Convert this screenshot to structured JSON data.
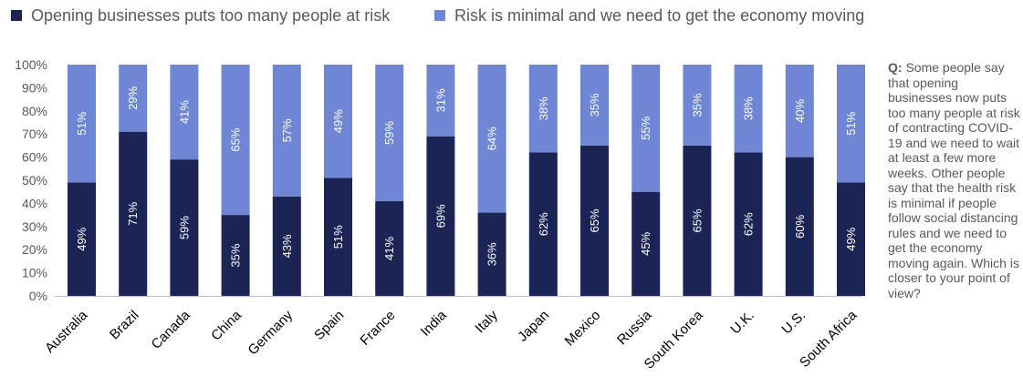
{
  "colors": {
    "series1": "#1b2455",
    "series2": "#6e86d4",
    "axis": "#bfbfbf"
  },
  "question": {
    "prefix": "Q:",
    "text": "Some people say that opening businesses now puts too many people at risk of contracting COVID-19 and we need to wait at least a few more weeks. Other people say that the health risk is minimal if people follow social distancing rules and we need to get the economy moving again. Which is closer to your point of view?"
  },
  "chart_data": {
    "type": "bar",
    "stacked": true,
    "legend_position": "top",
    "ylim": [
      0,
      100
    ],
    "y_ticks": [
      "0%",
      "10%",
      "20%",
      "30%",
      "40%",
      "50%",
      "60%",
      "70%",
      "80%",
      "90%",
      "100%"
    ],
    "categories": [
      "Australia",
      "Brazil",
      "Canada",
      "China",
      "Germany",
      "Spain",
      "France",
      "India",
      "Italy",
      "Japan",
      "Mexico",
      "Russia",
      "South Korea",
      "U.K.",
      "U.S.",
      "South Africa"
    ],
    "series": [
      {
        "name": "Opening businesses puts too many people at risk",
        "values": [
          49,
          71,
          59,
          35,
          43,
          51,
          41,
          69,
          36,
          62,
          65,
          45,
          65,
          62,
          60,
          49
        ],
        "labels": [
          "49%",
          "71%",
          "59%",
          "35%",
          "43%",
          "51%",
          "41%",
          "69%",
          "36%",
          "62%",
          "65%",
          "45%",
          "65%",
          "62%",
          "60%",
          "49%"
        ]
      },
      {
        "name": "Risk is minimal and we need to get the economy moving",
        "values": [
          51,
          29,
          41,
          65,
          57,
          49,
          59,
          31,
          64,
          38,
          35,
          55,
          35,
          38,
          40,
          51
        ],
        "labels": [
          "51%",
          "29%",
          "41%",
          "65%",
          "57%",
          "49%",
          "59%",
          "31%",
          "64%",
          "38%",
          "35%",
          "55%",
          "35%",
          "38%",
          "40%",
          "51%"
        ]
      }
    ]
  }
}
